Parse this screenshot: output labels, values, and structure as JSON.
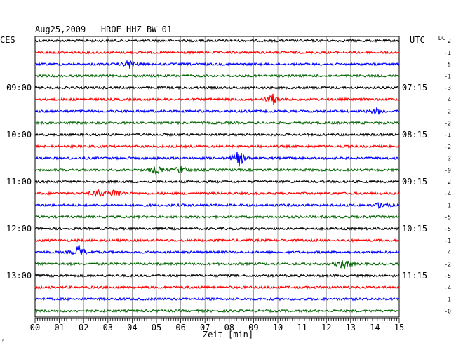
{
  "header": {
    "title": "Aug25,2009   HROE HHZ BW 01",
    "left_zone": "CES",
    "right_zone": "UTC",
    "dc_label": "DC"
  },
  "footer": {
    "xlabel": "Zeit [min]",
    "corner_mark": "ᴬ"
  },
  "chart_data": {
    "type": "line",
    "title": "Aug25,2009   HROE HHZ BW 01",
    "xlabel": "Zeit [min]",
    "x_range": [
      0,
      15
    ],
    "x_ticks": [
      "00",
      "01",
      "02",
      "03",
      "04",
      "05",
      "06",
      "07",
      "08",
      "09",
      "10",
      "11",
      "12",
      "13",
      "14",
      "15"
    ],
    "grid": true,
    "trace_colors": [
      "#000000",
      "#ff0000",
      "#0000ff",
      "#006400"
    ],
    "left_time_labels": [
      {
        "row": 4,
        "label": "09:00"
      },
      {
        "row": 8,
        "label": "10:00"
      },
      {
        "row": 12,
        "label": "11:00"
      },
      {
        "row": 16,
        "label": "12:00"
      },
      {
        "row": 20,
        "label": "13:00"
      }
    ],
    "right_time_labels": [
      {
        "row": 4,
        "label": "07:15"
      },
      {
        "row": 8,
        "label": "08:15"
      },
      {
        "row": 12,
        "label": "09:15"
      },
      {
        "row": 16,
        "label": "10:15"
      },
      {
        "row": 20,
        "label": "11:15"
      }
    ],
    "dc_offsets": [
      "2",
      "-1",
      "-5",
      "-1",
      "-3",
      "4",
      "-2",
      "-2",
      "-1",
      "-2",
      "-3",
      "-9",
      "2",
      "-4",
      "-1",
      "-5",
      "-5",
      "-1",
      "4",
      "-2",
      "-5",
      "-4",
      "1",
      "-0"
    ],
    "events": [
      {
        "row": 2,
        "minute": 3.9,
        "amplitude": 2.2
      },
      {
        "row": 5,
        "minute": 9.8,
        "amplitude": 2.5
      },
      {
        "row": 6,
        "minute": 14.1,
        "amplitude": 1.6
      },
      {
        "row": 10,
        "minute": 8.4,
        "amplitude": 4.0
      },
      {
        "row": 11,
        "minute": 5.0,
        "amplitude": 2.0
      },
      {
        "row": 11,
        "minute": 6.0,
        "amplitude": 2.0
      },
      {
        "row": 13,
        "minute": 2.6,
        "amplitude": 2.0
      },
      {
        "row": 13,
        "minute": 3.3,
        "amplitude": 2.4
      },
      {
        "row": 14,
        "minute": 14.3,
        "amplitude": 1.8
      },
      {
        "row": 18,
        "minute": 1.8,
        "amplitude": 3.2
      },
      {
        "row": 19,
        "minute": 12.7,
        "amplitude": 2.8
      }
    ]
  }
}
